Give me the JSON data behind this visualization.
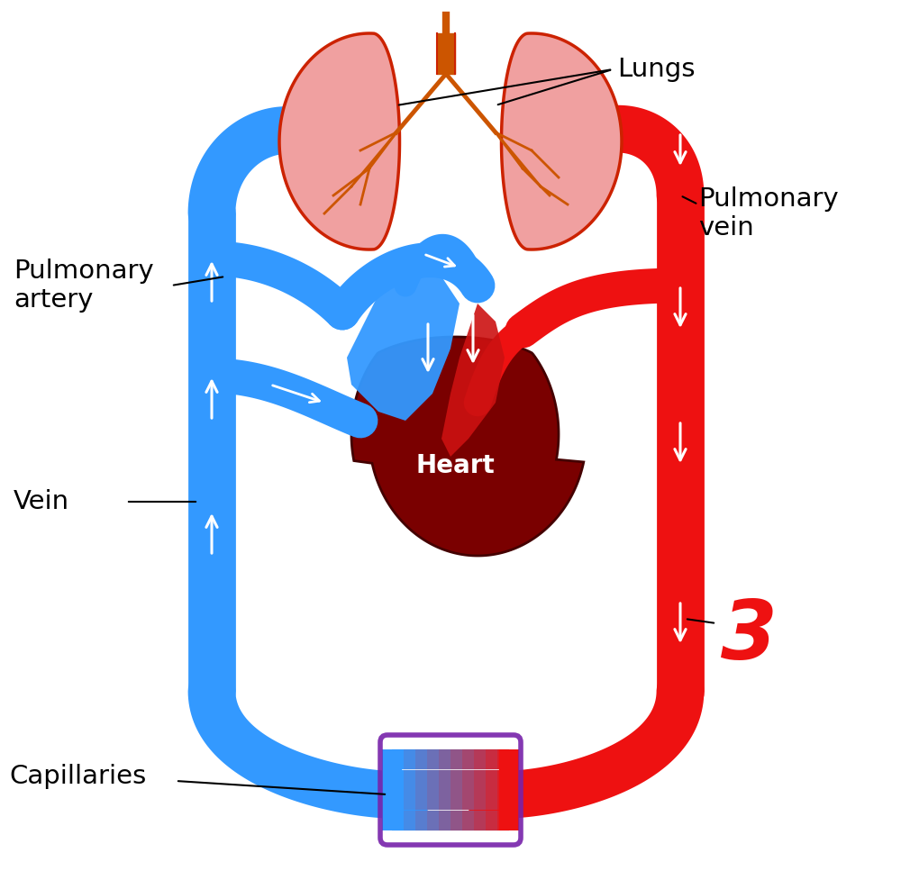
{
  "labels": {
    "lungs": "Lungs",
    "pulmonary_artery": "Pulmonary\nartery",
    "pulmonary_vein": "Pulmonary\nvein",
    "vein": "Vein",
    "capillaries": "Capillaries",
    "heart": "Heart",
    "number": "3"
  },
  "colors": {
    "blue": "#3399ff",
    "red": "#ee1111",
    "dark_red": "#7a0000",
    "lung_fill": "#f0a0a0",
    "lung_stroke": "#cc2200",
    "bronchus_color": "#cc5500",
    "white": "#ffffff",
    "black": "#000000",
    "background": "#ffffff",
    "purple": "#7722aa"
  },
  "label_fontsize": 21,
  "heart_label_fontsize": 20,
  "number_fontsize": 65
}
